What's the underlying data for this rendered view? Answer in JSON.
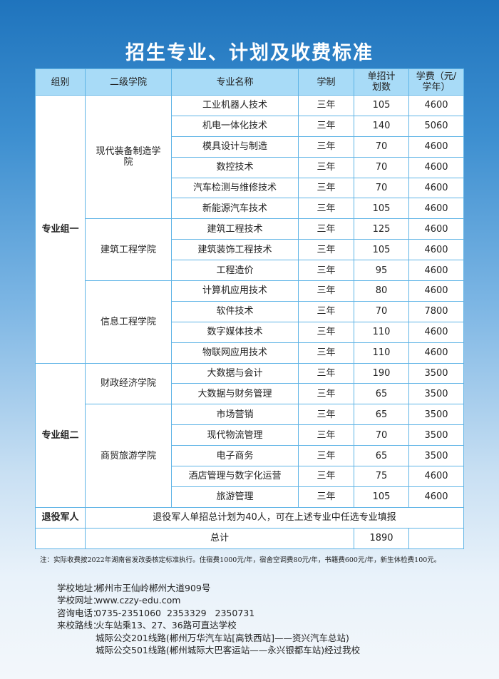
{
  "title": "招生专业、计划及收费标准",
  "headers": [
    "组别",
    "二级学院",
    "专业名称",
    "学制",
    "单招计划数",
    "学费（元/学年）"
  ],
  "groups": [
    {
      "name": "专业组一",
      "colleges": [
        {
          "name": "现代装备制造学院",
          "majors": [
            [
              "工业机器人技术",
              "三年",
              "105",
              "4600"
            ],
            [
              "机电一体化技术",
              "三年",
              "140",
              "5060"
            ],
            [
              "模具设计与制造",
              "三年",
              "70",
              "4600"
            ],
            [
              "数控技术",
              "三年",
              "70",
              "4600"
            ],
            [
              "汽车检测与维修技术",
              "三年",
              "70",
              "4600"
            ],
            [
              "新能源汽车技术",
              "三年",
              "105",
              "4600"
            ]
          ]
        },
        {
          "name": "建筑工程学院",
          "majors": [
            [
              "建筑工程技术",
              "三年",
              "125",
              "4600"
            ],
            [
              "建筑装饰工程技术",
              "三年",
              "105",
              "4600"
            ],
            [
              "工程造价",
              "三年",
              "95",
              "4600"
            ]
          ]
        },
        {
          "name": "信息工程学院",
          "majors": [
            [
              "计算机应用技术",
              "三年",
              "80",
              "4600"
            ],
            [
              "软件技术",
              "三年",
              "70",
              "7800"
            ],
            [
              "数字媒体技术",
              "三年",
              "110",
              "4600"
            ],
            [
              "物联网应用技术",
              "三年",
              "110",
              "4600"
            ]
          ]
        }
      ]
    },
    {
      "name": "专业组二",
      "colleges": [
        {
          "name": "财政经济学院",
          "majors": [
            [
              "大数据与会计",
              "三年",
              "190",
              "3500"
            ],
            [
              "大数据与财务管理",
              "三年",
              "65",
              "3500"
            ]
          ]
        },
        {
          "name": "商贸旅游学院",
          "majors": [
            [
              "市场营销",
              "三年",
              "65",
              "3500"
            ],
            [
              "现代物流管理",
              "三年",
              "70",
              "3500"
            ],
            [
              "电子商务",
              "三年",
              "65",
              "3500"
            ],
            [
              "酒店管理与数字化运营",
              "三年",
              "75",
              "4600"
            ],
            [
              "旅游管理",
              "三年",
              "105",
              "4600"
            ]
          ]
        }
      ]
    }
  ],
  "veteran": {
    "label": "退役军人",
    "text": "退役军人单招总计划为40人，可在上述专业中任选专业填报"
  },
  "total": {
    "label": "总计",
    "value": "1890"
  },
  "note": "注：实际收费按2022年湖南省发改委核定标准执行。住宿费1000元/年，宿舍空调费80元/年，书籍费600元/年，新生体检费100元。",
  "info": [
    {
      "label": "学校地址：",
      "value": "郴州市王仙岭郴州大道909号"
    },
    {
      "label": "学校网址：",
      "value": "www.czzy-edu.com"
    },
    {
      "label": "咨询电话：",
      "value": "0735-2351060  2353329   2350731"
    },
    {
      "label": "来校路线：",
      "value": "火车站乘13、27、36路可直达学校"
    },
    {
      "label": "",
      "value": "城际公交201线路(郴州万华汽车站[高铁西站]——资兴汽车总站)"
    },
    {
      "label": "",
      "value": "城际公交501线路(郴州城际大巴客运站——永兴银都车站)经过我校"
    }
  ]
}
